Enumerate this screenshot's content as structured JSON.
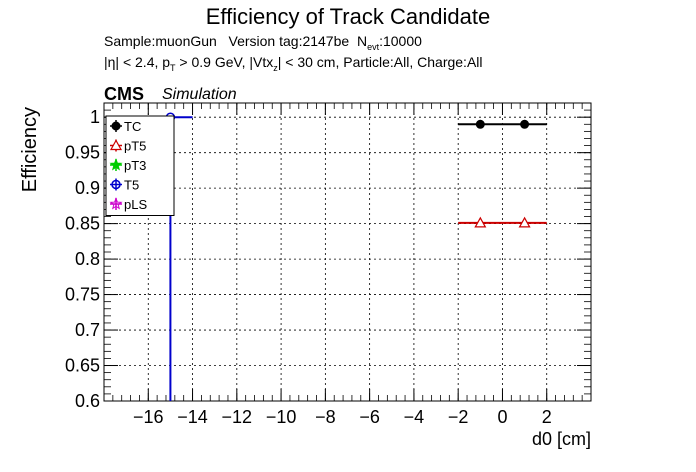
{
  "chart_data": {
    "type": "scatter",
    "title": "Efficiency of Track Candidate",
    "info_line1": {
      "sample": "Sample:muonGun",
      "version": "Version tag:2147be",
      "n_prefix": "N",
      "n_sub": "evt",
      "n_value": ":10000"
    },
    "info_line2": {
      "a": "|η| < 2.4, p",
      "a_sub": "T",
      "b": " > 0.9 GeV, |Vtx",
      "b_sub": "z",
      "c": "| < 30 cm, Particle:All, Charge:All"
    },
    "cms_label": "CMS",
    "simulation_label": "Simulation",
    "xlabel": "d0 [cm]",
    "ylabel": "Efficiency",
    "xlim": [
      -18,
      4
    ],
    "ylim": [
      0.6,
      1.02
    ],
    "xticks": [
      -16,
      -14,
      -12,
      -10,
      -8,
      -6,
      -4,
      -2,
      0,
      2
    ],
    "xtick_labels": [
      "−16",
      "−14",
      "−12",
      "−10",
      "−8",
      "−6",
      "−4",
      "−2",
      "0",
      "2"
    ],
    "yticks": [
      0.6,
      0.65,
      0.7,
      0.75,
      0.8,
      0.85,
      0.9,
      0.95,
      1.0
    ],
    "ytick_labels": [
      "0.6",
      "0.65",
      "0.7",
      "0.75",
      "0.8",
      "0.85",
      "0.9",
      "0.95",
      "1"
    ],
    "grid": true,
    "legend_position": "top-left",
    "series": [
      {
        "name": "TC",
        "color": "#000000",
        "marker": "filled-circle",
        "points": [
          {
            "x": -1,
            "xerr": 1,
            "y": 0.99
          },
          {
            "x": 1,
            "xerr": 1,
            "y": 0.99
          }
        ]
      },
      {
        "name": "pT5",
        "color": "#cc0000",
        "marker": "open-triangle",
        "points": [
          {
            "x": -1,
            "xerr": 1,
            "y": 0.851
          },
          {
            "x": 1,
            "xerr": 1,
            "y": 0.851
          }
        ]
      },
      {
        "name": "pT3",
        "color": "#00cc00",
        "marker": "filled-star",
        "points": []
      },
      {
        "name": "T5",
        "color": "#0000cc",
        "marker": "open-circle",
        "points": [
          {
            "x": -15,
            "xerr": 1,
            "y": 1.0
          }
        ],
        "vertical_drop_at_x": -15
      },
      {
        "name": "pLS",
        "color": "#cc00cc",
        "marker": "open-star",
        "points": []
      }
    ]
  }
}
